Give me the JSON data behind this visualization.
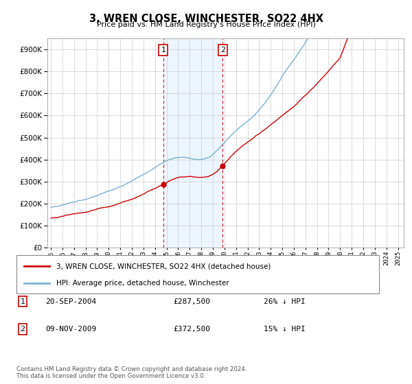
{
  "title": "3, WREN CLOSE, WINCHESTER, SO22 4HX",
  "subtitle": "Price paid vs. HM Land Registry's House Price Index (HPI)",
  "ylim": [
    0,
    950000
  ],
  "yticks": [
    0,
    100000,
    200000,
    300000,
    400000,
    500000,
    600000,
    700000,
    800000,
    900000
  ],
  "xlim_start": 1994.7,
  "xlim_end": 2025.5,
  "sale1_x": 2004.72,
  "sale1_y": 287500,
  "sale2_x": 2009.85,
  "sale2_y": 372500,
  "sale_color": "#cc0000",
  "hpi_color": "#7ab0d4",
  "vline_color": "#cc0000",
  "legend_sale": "3, WREN CLOSE, WINCHESTER, SO22 4HX (detached house)",
  "legend_hpi": "HPI: Average price, detached house, Winchester",
  "table_rows": [
    {
      "num": "1",
      "date": "20-SEP-2004",
      "price": "£287,500",
      "pct": "26% ↓ HPI"
    },
    {
      "num": "2",
      "date": "09-NOV-2009",
      "price": "£372,500",
      "pct": "15% ↓ HPI"
    }
  ],
  "footnote": "Contains HM Land Registry data © Crown copyright and database right 2024.\nThis data is licensed under the Open Government Licence v3.0.",
  "bg_shade_color": "#ddeeff",
  "bg_shade_alpha": 0.5
}
